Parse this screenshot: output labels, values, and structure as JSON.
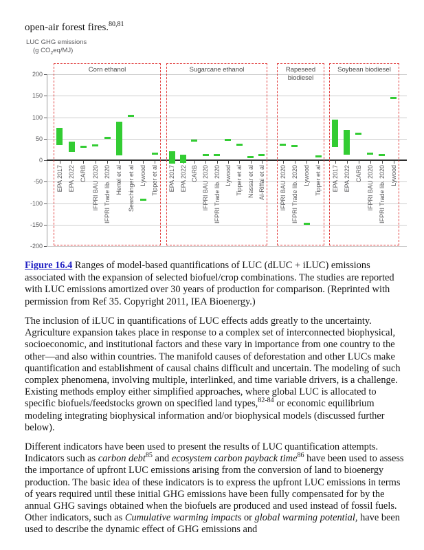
{
  "intro": {
    "segments": [
      {
        "t": "open-air forest fires.",
        "name": "intro-text"
      },
      {
        "t": "80,81",
        "tag": "sup",
        "name": "reference-superscript"
      }
    ]
  },
  "chart_data": {
    "type": "bar",
    "title": "LUC GHG emissions",
    "unit_segments": [
      {
        "t": "(g CO",
        "name": "unit-text"
      },
      {
        "t": "2",
        "tag": "sub",
        "name": "unit-subscript"
      },
      {
        "t": "eq/MJ)",
        "name": "unit-text"
      }
    ],
    "ylim": [
      -200,
      200
    ],
    "yticks": [
      200,
      150,
      100,
      50,
      0,
      -50,
      -100,
      -150,
      -200
    ],
    "grid": "on",
    "bar_color": "#33cc33",
    "panel_border_color": "#e13c3c",
    "panels": [
      {
        "title": "Corn ethanol",
        "categories": [
          "EPA 2017",
          "EPA 2022",
          "CARB",
          "IFPRI BAU 2020",
          "IFPRI Trade lib. 2020",
          "Hertel et al",
          "Searchinger et al",
          "Lywood",
          "Tipper et al"
        ],
        "ranges": [
          [
            35,
            76
          ],
          [
            20,
            43
          ],
          [
            29,
            33
          ],
          [
            33,
            37
          ],
          [
            50,
            55
          ],
          [
            12,
            89
          ],
          [
            102,
            106
          ],
          [
            -94,
            -89
          ],
          [
            14,
            18
          ]
        ]
      },
      {
        "title": "Sugarcane ethanol",
        "categories": [
          "EPA 2017",
          "EPA 2022",
          "CARB",
          "IFPRI BAU 2020",
          "IFPRI Trade lib. 2020",
          "Lywood",
          "Tipper et al",
          "Nassar et al",
          "Al-Riffai et al"
        ],
        "ranges": [
          [
            -8,
            21
          ],
          [
            -7,
            13
          ],
          [
            44,
            48
          ],
          [
            10,
            14
          ],
          [
            10,
            14
          ],
          [
            46,
            50
          ],
          [
            35,
            39
          ],
          [
            6,
            10
          ],
          [
            10,
            14
          ]
        ]
      },
      {
        "title": "Rapeseed biodiesel",
        "categories": [
          "IFPRI BAU 2020",
          "IFPRI Trade lib. 2020",
          "Lywood",
          "Tipper et al"
        ],
        "ranges": [
          [
            34,
            38
          ],
          [
            32,
            36
          ],
          [
            -150,
            -146
          ],
          [
            7,
            11
          ]
        ]
      },
      {
        "title": "Soybean biodiesel",
        "categories": [
          "EPA 2017",
          "EPA 2022",
          "CARB",
          "IFPRI BAU 2020",
          "IFPRI Trade lib. 2020",
          "Lywood"
        ],
        "ranges": [
          [
            31,
            94
          ],
          [
            13,
            71
          ],
          [
            60,
            64
          ],
          [
            14,
            18
          ],
          [
            10,
            14
          ],
          [
            143,
            147
          ]
        ]
      }
    ]
  },
  "caption": {
    "segments": [
      {
        "t": "Figure 16.4",
        "tag": "a",
        "cls": "fig-link",
        "name": "figure-link"
      },
      {
        "t": " Ranges of model-based quantifications of LUC (dLUC + iLUC) emissions associated with the expansion of selected biofuel/crop combinations. The studies are reported with LUC emissions amortized over 30 years of production for comparison. (Reprinted with permission from Ref 35. Copyright 2011, IEA Bioenergy.)",
        "name": "caption-text"
      }
    ]
  },
  "paragraphs": [
    {
      "segments": [
        {
          "t": "The inclusion of iLUC in quantifications of LUC effects adds greatly to the uncertainty. Agriculture expansion takes place in response to a complex set of interconnected biophysical, socioeconomic, and institutional factors and these vary in importance from one country to the other—and also within countries. The manifold causes of deforestation and other LUCs make quantification and establishment of causal chains difficult and uncertain. The modeling of such complex phenomena, involving multiple, interlinked, and time variable drivers, is a challenge. Existing methods employ either simplified approaches, where global LUC is allocated to specific biofuels/feedstocks grown on specified land types,",
          "name": "paragraph-text"
        },
        {
          "t": "82-84",
          "tag": "sup",
          "name": "reference-superscript"
        },
        {
          "t": " or economic equilibrium modeling integrating biophysical information and/or biophysical models (discussed further below).",
          "name": "paragraph-text"
        }
      ]
    },
    {
      "segments": [
        {
          "t": "Different indicators have been used to present the results of LUC quantification attempts. Indicators such as ",
          "name": "paragraph-text"
        },
        {
          "t": "carbon debt",
          "tag": "i",
          "name": "term-italic"
        },
        {
          "t": "85",
          "tag": "sup",
          "name": "reference-superscript"
        },
        {
          "t": " and ",
          "name": "paragraph-text"
        },
        {
          "t": "ecosystem carbon payback time",
          "tag": "i",
          "name": "term-italic"
        },
        {
          "t": "86",
          "tag": "sup",
          "name": "reference-superscript"
        },
        {
          "t": " have been used to assess the importance of upfront LUC emissions arising from the conversion of land to bioenergy production. The basic idea of these indicators is to express the upfront LUC emissions in terms of years required until these initial GHG emissions have been fully compensated for by the annual GHG savings obtained when the biofuels are produced and used instead of fossil fuels. Other indicators, such as ",
          "name": "paragraph-text"
        },
        {
          "t": "Cumulative warming impacts",
          "tag": "i",
          "name": "term-italic"
        },
        {
          "t": " or ",
          "name": "paragraph-text"
        },
        {
          "t": "global warming potential,",
          "tag": "i",
          "name": "term-italic"
        },
        {
          "t": " have been used to describe the dynamic effect of GHG emissions and",
          "name": "paragraph-text"
        }
      ]
    }
  ]
}
